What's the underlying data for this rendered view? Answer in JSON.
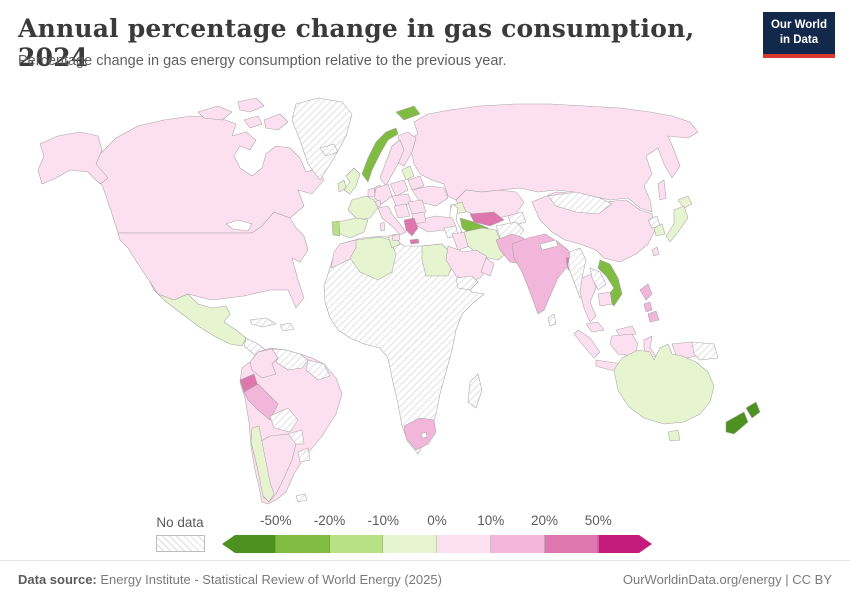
{
  "header": {
    "title": "Annual percentage change in gas consumption, 2024",
    "subtitle": "Percentage change in gas energy consumption relative to the previous year.",
    "logo": {
      "line1": "Our World",
      "line2": "in Data",
      "bg_color": "#12294b",
      "accent_color": "#d93a2d"
    }
  },
  "legend": {
    "no_data_label": "No data",
    "ticks": [
      "-50%",
      "-20%",
      "-10%",
      "0%",
      "10%",
      "20%",
      "50%"
    ],
    "colors": [
      "#4d9221",
      "#7fbc41",
      "#b8e186",
      "#e6f5d0",
      "#fde0ef",
      "#f1b6da",
      "#de77ae",
      "#c51b7d"
    ],
    "buckets": [
      "< -50%",
      "-50% to -20%",
      "-20% to -10%",
      "-10% to 0%",
      "0% to 10%",
      "10% to 20%",
      "20% to 50%",
      "> 50%"
    ]
  },
  "footer": {
    "source_label": "Data source:",
    "source_text": "Energy Institute - Statistical Review of World Energy (2025)",
    "site_link": "OurWorldinData.org/energy",
    "separator": "|",
    "license": "CC BY"
  },
  "map": {
    "no_data_style": "white with diagonal gray hatching",
    "countries": [
      {
        "id": "united-states",
        "name": "United States",
        "bucket": 4
      },
      {
        "id": "canada",
        "name": "Canada",
        "bucket": 4
      },
      {
        "id": "greenland",
        "name": "Greenland",
        "bucket": -1
      },
      {
        "id": "mexico",
        "name": "Mexico",
        "bucket": 3
      },
      {
        "id": "central-america",
        "name": "Central America",
        "bucket": -1
      },
      {
        "id": "cuba",
        "name": "Cuba",
        "bucket": -1
      },
      {
        "id": "hispaniola",
        "name": "Hispaniola",
        "bucket": -1
      },
      {
        "id": "colombia",
        "name": "Colombia",
        "bucket": 4
      },
      {
        "id": "venezuela",
        "name": "Venezuela",
        "bucket": -1
      },
      {
        "id": "guyanas",
        "name": "Guyanas",
        "bucket": -1
      },
      {
        "id": "ecuador",
        "name": "Ecuador",
        "bucket": 6
      },
      {
        "id": "peru",
        "name": "Peru",
        "bucket": 5
      },
      {
        "id": "brazil",
        "name": "Brazil",
        "bucket": 4
      },
      {
        "id": "bolivia",
        "name": "Bolivia",
        "bucket": -1
      },
      {
        "id": "paraguay",
        "name": "Paraguay",
        "bucket": -1
      },
      {
        "id": "uruguay",
        "name": "Uruguay",
        "bucket": -1
      },
      {
        "id": "argentina",
        "name": "Argentina",
        "bucket": 4
      },
      {
        "id": "chile",
        "name": "Chile",
        "bucket": 3
      },
      {
        "id": "falkland-islands",
        "name": "Falkland Islands",
        "bucket": -1
      },
      {
        "id": "iceland",
        "name": "Iceland",
        "bucket": -1
      },
      {
        "id": "svalbard",
        "name": "Svalbard",
        "bucket": 1
      },
      {
        "id": "norway",
        "name": "Norway",
        "bucket": 1
      },
      {
        "id": "sweden",
        "name": "Sweden",
        "bucket": 4
      },
      {
        "id": "finland",
        "name": "Finland",
        "bucket": 4
      },
      {
        "id": "denmark",
        "name": "Denmark",
        "bucket": 4
      },
      {
        "id": "united-kingdom",
        "name": "United Kingdom",
        "bucket": 3
      },
      {
        "id": "ireland",
        "name": "Ireland",
        "bucket": 3
      },
      {
        "id": "france",
        "name": "France",
        "bucket": 3
      },
      {
        "id": "spain",
        "name": "Spain",
        "bucket": 3
      },
      {
        "id": "portugal",
        "name": "Portugal",
        "bucket": 2
      },
      {
        "id": "germany",
        "name": "Germany",
        "bucket": 4
      },
      {
        "id": "benelux",
        "name": "Benelux",
        "bucket": 4
      },
      {
        "id": "poland",
        "name": "Poland",
        "bucket": 4
      },
      {
        "id": "baltics",
        "name": "Baltic states",
        "bucket": 3
      },
      {
        "id": "belarus",
        "name": "Belarus",
        "bucket": 4
      },
      {
        "id": "ukraine",
        "name": "Ukraine",
        "bucket": 4
      },
      {
        "id": "central-europe",
        "name": "Central Europe",
        "bucket": 4
      },
      {
        "id": "switzerland",
        "name": "Switzerland",
        "bucket": 4
      },
      {
        "id": "italy",
        "name": "Italy",
        "bucket": 4
      },
      {
        "id": "balkans",
        "name": "Balkans",
        "bucket": 4
      },
      {
        "id": "romania",
        "name": "Romania",
        "bucket": 4
      },
      {
        "id": "bulgaria",
        "name": "Bulgaria",
        "bucket": 4
      },
      {
        "id": "greece",
        "name": "Greece",
        "bucket": 6
      },
      {
        "id": "russia",
        "name": "Russia",
        "bucket": 4
      },
      {
        "id": "kazakhstan",
        "name": "Kazakhstan",
        "bucket": 4
      },
      {
        "id": "uzbekistan",
        "name": "Uzbekistan",
        "bucket": 6
      },
      {
        "id": "turkmenistan",
        "name": "Turkmenistan",
        "bucket": 1
      },
      {
        "id": "kyrgyzstan-tajikistan",
        "name": "Kyrgyzstan and Tajikistan",
        "bucket": -1
      },
      {
        "id": "caucasus",
        "name": "Caucasus",
        "bucket": 3
      },
      {
        "id": "turkey",
        "name": "Turkey",
        "bucket": 4
      },
      {
        "id": "syria",
        "name": "Syria",
        "bucket": -1
      },
      {
        "id": "iraq",
        "name": "Iraq",
        "bucket": 4
      },
      {
        "id": "iran",
        "name": "Iran",
        "bucket": 3
      },
      {
        "id": "afghanistan",
        "name": "Afghanistan",
        "bucket": -1
      },
      {
        "id": "saudi-arabia",
        "name": "Saudi Arabia",
        "bucket": 4
      },
      {
        "id": "yemen",
        "name": "Yemen",
        "bucket": -1
      },
      {
        "id": "oman",
        "name": "Oman",
        "bucket": 4
      },
      {
        "id": "pakistan",
        "name": "Pakistan",
        "bucket": 5
      },
      {
        "id": "india",
        "name": "India",
        "bucket": 5
      },
      {
        "id": "bangladesh",
        "name": "Bangladesh",
        "bucket": 6
      },
      {
        "id": "sri-lanka",
        "name": "Sri Lanka",
        "bucket": -1
      },
      {
        "id": "china",
        "name": "China",
        "bucket": 4
      },
      {
        "id": "mongolia",
        "name": "Mongolia",
        "bucket": -1
      },
      {
        "id": "taiwan",
        "name": "Taiwan",
        "bucket": 4
      },
      {
        "id": "north-korea",
        "name": "North Korea",
        "bucket": -1
      },
      {
        "id": "south-korea",
        "name": "South Korea",
        "bucket": 3
      },
      {
        "id": "japan",
        "name": "Japan",
        "bucket": 3
      },
      {
        "id": "myanmar",
        "name": "Myanmar",
        "bucket": -1
      },
      {
        "id": "thailand",
        "name": "Thailand",
        "bucket": 4
      },
      {
        "id": "laos",
        "name": "Laos",
        "bucket": -1
      },
      {
        "id": "vietnam",
        "name": "Vietnam",
        "bucket": 1
      },
      {
        "id": "cambodia",
        "name": "Cambodia",
        "bucket": 4
      },
      {
        "id": "malaysia",
        "name": "Malaysia",
        "bucket": 4
      },
      {
        "id": "indonesia",
        "name": "Indonesia",
        "bucket": 4
      },
      {
        "id": "philippines",
        "name": "Philippines",
        "bucket": 5
      },
      {
        "id": "papua-new-guinea",
        "name": "Papua New Guinea",
        "bucket": -1
      },
      {
        "id": "sub-saharan-africa",
        "name": "Sub-Saharan Africa (incl. Libya, mostly no data)",
        "bucket": -1
      },
      {
        "id": "morocco",
        "name": "Morocco",
        "bucket": 4
      },
      {
        "id": "algeria",
        "name": "Algeria",
        "bucket": 3
      },
      {
        "id": "tunisia",
        "name": "Tunisia",
        "bucket": 3
      },
      {
        "id": "egypt",
        "name": "Egypt",
        "bucket": 3
      },
      {
        "id": "south-africa",
        "name": "South Africa",
        "bucket": 5
      },
      {
        "id": "madagascar",
        "name": "Madagascar",
        "bucket": -1
      },
      {
        "id": "australia",
        "name": "Australia",
        "bucket": 3
      },
      {
        "id": "new-zealand",
        "name": "New Zealand",
        "bucket": 0
      }
    ]
  }
}
